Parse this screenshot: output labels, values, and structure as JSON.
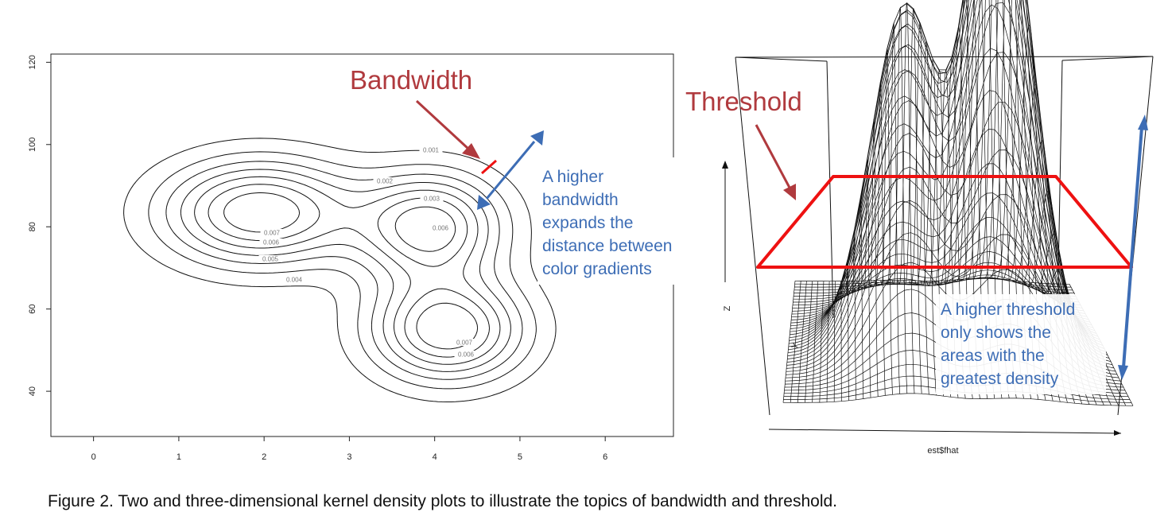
{
  "caption": "Figure 2. Two and three-dimensional kernel density plots to illustrate the topics of bandwidth and threshold.",
  "colors": {
    "annotation_red": "#b03a3e",
    "annotation_blue": "#3d6db5",
    "highlight_red": "#ee1111",
    "line": "#111111"
  },
  "chart_data": [
    {
      "type": "contour",
      "title": "",
      "xlabel": "",
      "ylabel": "",
      "xlim": [
        -0.5,
        6.8
      ],
      "ylim": [
        29,
        122
      ],
      "x_ticks": [
        "0",
        "1",
        "2",
        "3",
        "4",
        "5",
        "6"
      ],
      "y_ticks": [
        "40",
        "60",
        "80",
        "100",
        "120"
      ],
      "density_peaks": [
        {
          "x": 1.95,
          "y": 83.5
        },
        {
          "x": 3.95,
          "y": 80
        },
        {
          "x": 4.15,
          "y": 55
        }
      ],
      "contour_levels": [
        0.001,
        0.002,
        0.003,
        0.004,
        0.005,
        0.006,
        0.007
      ],
      "contour_labels": [
        "0.001",
        "0.002",
        "0.003",
        "0.004",
        "0.005",
        "0.006",
        "0.007",
        "0.006",
        "0.007",
        "0.006",
        "0.007"
      ],
      "annotations": {
        "bandwidth_title": "Bandwidth",
        "bandwidth_text": [
          "A higher",
          "bandwidth",
          "expands the",
          "distance between",
          "color gradients"
        ]
      }
    },
    {
      "type": "surface",
      "axis_labels": {
        "x": "est$fhat",
        "y": "Y",
        "z": "Z"
      },
      "annotations": {
        "threshold_title": "Threshold",
        "threshold_text": [
          "A higher threshold",
          "only shows the",
          "areas with the",
          "greatest density"
        ]
      }
    }
  ]
}
